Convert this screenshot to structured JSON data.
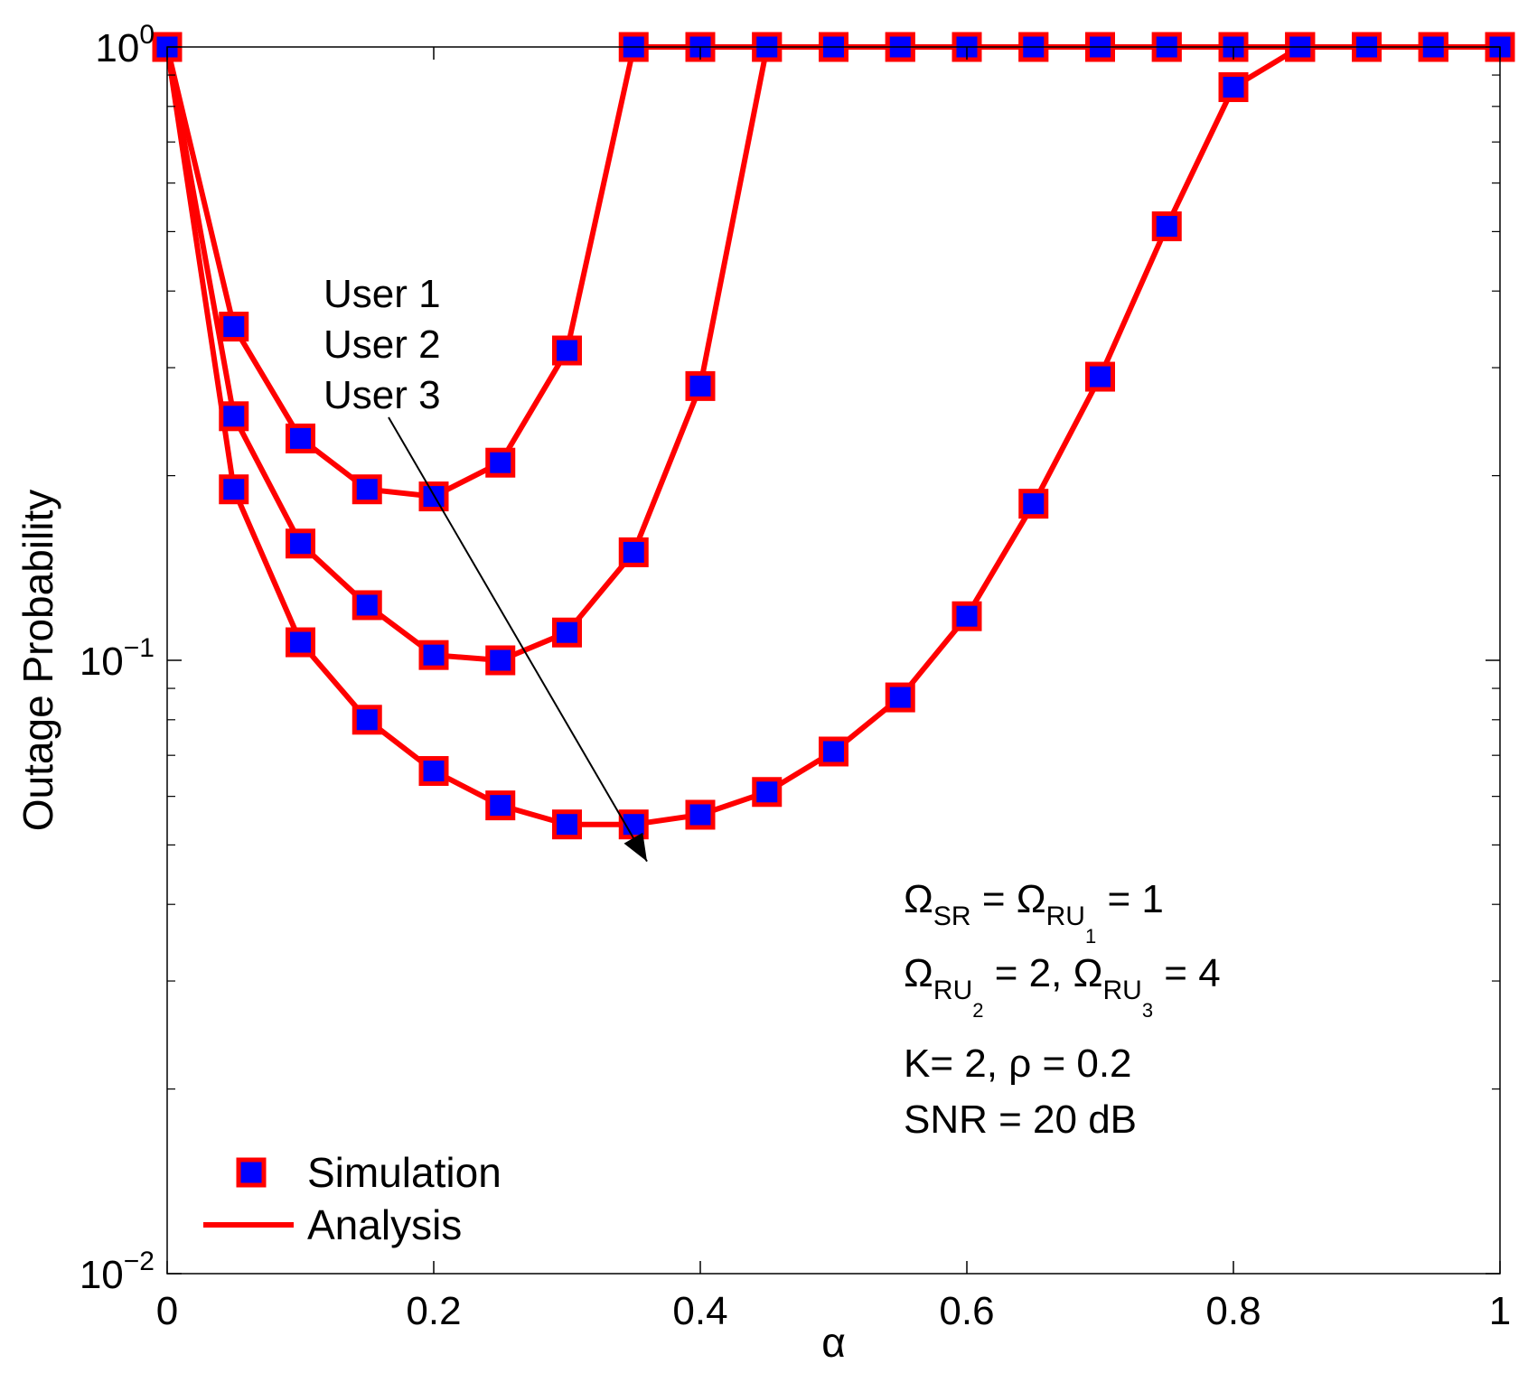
{
  "chart_data": {
    "type": "line",
    "title": "",
    "xlabel": "α",
    "ylabel": "Outage Probability",
    "xlim": [
      0,
      1
    ],
    "ylim": [
      0.01,
      1
    ],
    "yscale": "log",
    "x_ticks": [
      {
        "value": 0,
        "label": "0"
      },
      {
        "value": 0.2,
        "label": "0.2"
      },
      {
        "value": 0.4,
        "label": "0.4"
      },
      {
        "value": 0.6,
        "label": "0.6"
      },
      {
        "value": 0.8,
        "label": "0.8"
      },
      {
        "value": 1,
        "label": "1"
      }
    ],
    "y_ticks": [
      {
        "value": 1,
        "base": "10",
        "exp": "0"
      },
      {
        "value": 0.1,
        "base": "10",
        "exp": "−1"
      },
      {
        "value": 0.01,
        "base": "10",
        "exp": "−2"
      }
    ],
    "grid": false,
    "series": [
      {
        "name": "User 1",
        "x": [
          0,
          0.05,
          0.1,
          0.15,
          0.2,
          0.25,
          0.3,
          0.35,
          0.4,
          0.45,
          0.5,
          0.55,
          0.6,
          0.65,
          0.7,
          0.75,
          0.8,
          0.85,
          0.9,
          0.95,
          1
        ],
        "values": [
          1,
          0.35,
          0.23,
          0.19,
          0.185,
          0.21,
          0.32,
          1,
          1,
          1,
          1,
          1,
          1,
          1,
          1,
          1,
          1,
          1,
          1,
          1,
          1
        ]
      },
      {
        "name": "User 2",
        "x": [
          0,
          0.05,
          0.1,
          0.15,
          0.2,
          0.25,
          0.3,
          0.35,
          0.4,
          0.45,
          0.5,
          0.55,
          0.6,
          0.65,
          0.7,
          0.75,
          0.8,
          0.85,
          0.9,
          0.95,
          1
        ],
        "values": [
          1,
          0.25,
          0.155,
          0.123,
          0.102,
          0.1,
          0.111,
          0.15,
          0.28,
          1,
          1,
          1,
          1,
          1,
          1,
          1,
          1,
          1,
          1,
          1,
          1
        ]
      },
      {
        "name": "User 3",
        "x": [
          0,
          0.05,
          0.1,
          0.15,
          0.2,
          0.25,
          0.3,
          0.35,
          0.4,
          0.45,
          0.5,
          0.55,
          0.6,
          0.65,
          0.7,
          0.75,
          0.8,
          0.85,
          0.9,
          0.95,
          1
        ],
        "values": [
          1,
          0.19,
          0.107,
          0.08,
          0.066,
          0.058,
          0.054,
          0.054,
          0.056,
          0.061,
          0.071,
          0.087,
          0.118,
          0.18,
          0.29,
          0.51,
          0.86,
          1,
          1,
          1,
          1
        ]
      }
    ],
    "annotations": {
      "users": [
        "User 1",
        "User 2",
        "User 3"
      ],
      "arrow": {
        "from": [
          0.2,
          0.185
        ],
        "to": [
          0.36,
          0.047
        ]
      },
      "param_lines": [
        {
          "parts": [
            {
              "text": "Ω",
              "style": "normal"
            },
            {
              "text": "SR",
              "style": "sub"
            },
            {
              "text": " = Ω",
              "style": "normal"
            },
            {
              "text": "RU",
              "style": "sub"
            },
            {
              "text": "1",
              "style": "subsub"
            },
            {
              "text": " = 1",
              "style": "normal"
            }
          ]
        },
        {
          "parts": [
            {
              "text": "Ω",
              "style": "normal"
            },
            {
              "text": "RU",
              "style": "sub"
            },
            {
              "text": "2",
              "style": "subsub"
            },
            {
              "text": " = 2, Ω",
              "style": "normal"
            },
            {
              "text": "RU",
              "style": "sub"
            },
            {
              "text": "3",
              "style": "subsub"
            },
            {
              "text": " = 4",
              "style": "normal"
            }
          ]
        },
        {
          "parts": [
            {
              "text": "K= 2, ρ = 0.2",
              "style": "normal"
            }
          ]
        },
        {
          "parts": [
            {
              "text": "SNR = 20 dB",
              "style": "normal"
            }
          ]
        }
      ]
    },
    "legend": {
      "position": "bottom-left",
      "entries": [
        {
          "label": "Simulation",
          "kind": "marker"
        },
        {
          "label": "Analysis",
          "kind": "line"
        }
      ]
    },
    "colors": {
      "line": "#ff0000",
      "marker_fill": "#0000ff",
      "marker_edge": "#ff0000",
      "axis": "#000000",
      "arrow": "#000000"
    }
  }
}
